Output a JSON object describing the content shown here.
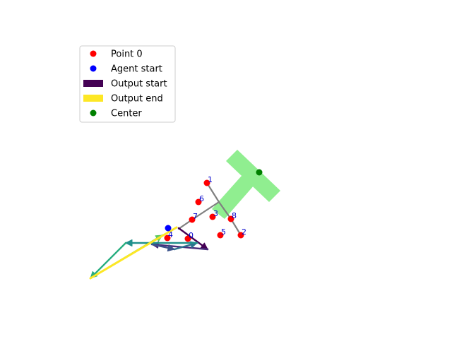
{
  "legend": {
    "items": [
      {
        "label": "Point 0",
        "marker": "dot",
        "color": "#ff0000"
      },
      {
        "label": "Agent start",
        "marker": "dot",
        "color": "#0000ff"
      },
      {
        "label": "Output start",
        "marker": "bar",
        "color": "#440154"
      },
      {
        "label": "Output end",
        "marker": "bar",
        "color": "#fde725"
      },
      {
        "label": "Center",
        "marker": "dot",
        "color": "#008000"
      }
    ]
  },
  "point_labels": [
    "0",
    "1",
    "2",
    "3",
    "4",
    "5",
    "6",
    "7",
    "8"
  ],
  "colors": {
    "points": "#ff0000",
    "agent": "#0000ff",
    "center": "#008000",
    "shape": "#90ee90",
    "skeleton": "#808080",
    "label": "#0000cc"
  }
}
